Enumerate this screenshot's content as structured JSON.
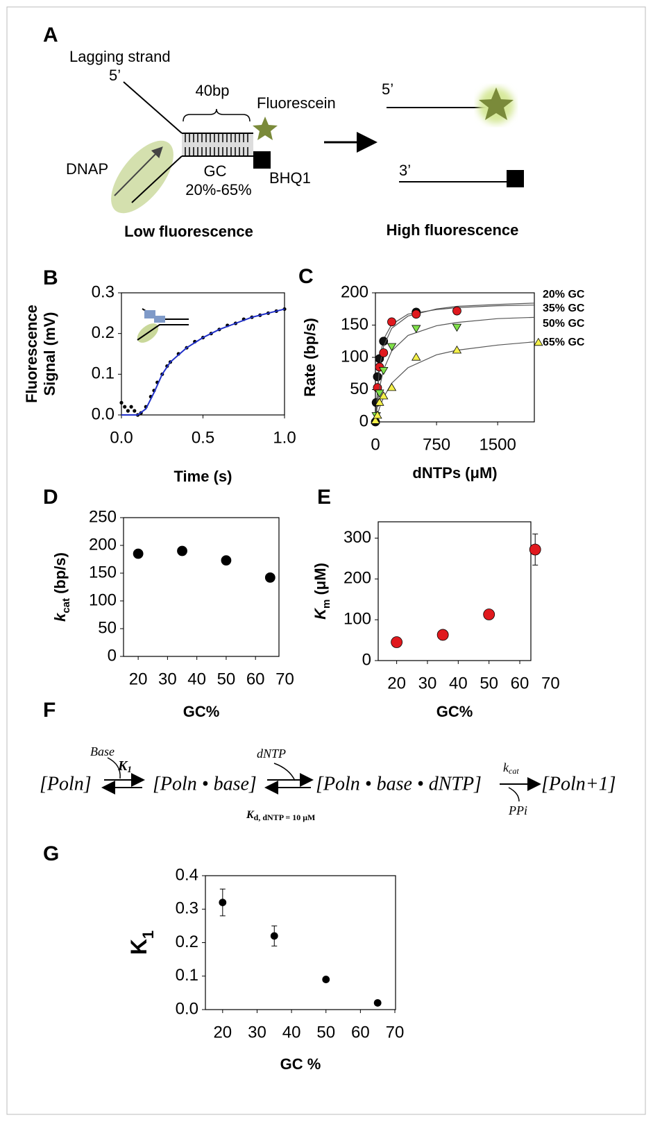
{
  "panel_a": {
    "label": "A",
    "lagging_strand": "Lagging strand",
    "five_prime_left": "5’",
    "bp": "40bp",
    "fluorescein": "Fluorescein",
    "dnap": "DNAP",
    "gc": "GC",
    "gc_range": "20%-65%",
    "bhq1": "BHQ1",
    "low": "Low fluorescence",
    "five_prime_right": "5’",
    "three_prime": "3’",
    "high": "High fluorescence"
  },
  "chart_data": [
    {
      "type": "line",
      "panel_label": "B",
      "x_label": "Time (s)",
      "y_label": [
        "Fluorescence",
        "Signal (mV)"
      ],
      "xlim": [
        0,
        1
      ],
      "ylim": [
        0,
        0.3
      ],
      "xticks": [
        {
          "value": 0,
          "label": "0.0"
        },
        0.5,
        {
          "value": 1,
          "label": "1.0"
        }
      ],
      "yticks": [
        {
          "value": 0,
          "label": "0.0"
        },
        0.1,
        0.2,
        0.3
      ],
      "series": [
        {
          "color": "#000000",
          "marker": "circle",
          "x": [
            0.0,
            0.02,
            0.04,
            0.06,
            0.08,
            0.1,
            0.12,
            0.15,
            0.18,
            0.2,
            0.22,
            0.25,
            0.28,
            0.3,
            0.35,
            0.4,
            0.45,
            0.5,
            0.55,
            0.6,
            0.65,
            0.7,
            0.75,
            0.8,
            0.85,
            0.9,
            0.95,
            1.0
          ],
          "values": [
            0.03,
            0.02,
            0.01,
            0.02,
            0.01,
            0.0,
            0.005,
            0.02,
            0.045,
            0.06,
            0.08,
            0.1,
            0.12,
            0.13,
            0.15,
            0.165,
            0.18,
            0.19,
            0.2,
            0.21,
            0.22,
            0.225,
            0.235,
            0.24,
            0.245,
            0.25,
            0.255,
            0.26
          ]
        },
        {
          "color": "#2030c8",
          "marker": "line",
          "x": [
            0,
            0.1,
            0.15,
            0.2,
            0.25,
            0.3,
            0.4,
            0.5,
            0.6,
            0.7,
            0.8,
            0.9,
            1.0
          ],
          "values": [
            0,
            0,
            0.015,
            0.055,
            0.1,
            0.13,
            0.165,
            0.19,
            0.21,
            0.225,
            0.24,
            0.25,
            0.26
          ]
        }
      ]
    },
    {
      "type": "scatter",
      "panel_label": "C",
      "x_label": "dNTPs (μM)",
      "y_label": [
        "Rate (bp/s)"
      ],
      "xlim": [
        0,
        1950
      ],
      "ylim": [
        0,
        200
      ],
      "xticks": [
        0,
        750,
        1500
      ],
      "yticks": [
        0,
        50,
        100,
        150,
        200
      ],
      "series": [
        {
          "name": "20% GC",
          "color": "#111111",
          "marker": "circle",
          "x": [
            0,
            10,
            25,
            50,
            100,
            500
          ],
          "values": [
            0,
            30,
            70,
            98,
            125,
            170
          ],
          "curve": {
            "x": [
              0,
              50,
              100,
              200,
              400,
              750,
              1000,
              1500,
              1950
            ],
            "values": [
              0,
              97,
              128,
              151,
              167,
              174,
              177,
              180,
              181
            ]
          }
        },
        {
          "name": "35% GC",
          "color": "#e0191e",
          "marker": "circle",
          "x": [
            25,
            50,
            100,
            200,
            500,
            1000
          ],
          "values": [
            53,
            85,
            107,
            155,
            167,
            172
          ],
          "curve": {
            "x": [
              0,
              50,
              100,
              200,
              400,
              750,
              1000,
              1500,
              1950
            ],
            "values": [
              0,
              85,
              117,
              145,
              164,
              175,
              179,
              182,
              184
            ]
          }
        },
        {
          "name": "50% GC",
          "color": "#80e04a",
          "marker": "triangle-down",
          "x": [
            10,
            50,
            100,
            200,
            500,
            1000
          ],
          "values": [
            10,
            45,
            80,
            117,
            145,
            147
          ],
          "curve": {
            "x": [
              0,
              50,
              100,
              200,
              400,
              750,
              1000,
              1500,
              1950
            ],
            "values": [
              0,
              53,
              81,
              110,
              134,
              149,
              154,
              160,
              162
            ]
          }
        },
        {
          "name": "65% GC",
          "color": "#f4f04a",
          "marker": "triangle-up",
          "x": [
            0,
            25,
            50,
            100,
            200,
            500,
            1000,
            2000
          ],
          "values": [
            2,
            10,
            30,
            40,
            53,
            100,
            111,
            123
          ],
          "curve": {
            "x": [
              0,
              50,
              100,
              200,
              400,
              750,
              1000,
              1500,
              1950
            ],
            "values": [
              0,
              22,
              38,
              60,
              84,
              104,
              111,
              119,
              124
            ]
          }
        }
      ]
    },
    {
      "type": "scatter",
      "panel_label": "D",
      "x_label": "GC%",
      "y_label": [
        "k",
        "cat",
        " (bp/s)"
      ],
      "xlim": [
        15,
        68
      ],
      "ylim": [
        0,
        250
      ],
      "xticks": [
        20,
        30,
        40,
        50,
        60,
        70
      ],
      "yticks": [
        0,
        50,
        100,
        150,
        200,
        250
      ],
      "series": [
        {
          "color": "#000000",
          "marker": "circle",
          "x": [
            20,
            35,
            50,
            65
          ],
          "values": [
            185,
            190,
            173,
            142
          ]
        }
      ]
    },
    {
      "type": "scatter",
      "panel_label": "E",
      "x_label": "GC%",
      "y_label": [
        "K",
        "m",
        " (μM)"
      ],
      "xlim": [
        14,
        63.6
      ],
      "ylim": [
        0,
        340
      ],
      "xticks": [
        20,
        30,
        40,
        50,
        60,
        70
      ],
      "yticks": [
        0,
        100,
        200,
        300
      ],
      "series": [
        {
          "color": "#e0191e",
          "marker": "circle",
          "x": [
            20,
            35,
            50,
            65
          ],
          "values": [
            45,
            63,
            113,
            272
          ],
          "errors": [
            null,
            null,
            null,
            38
          ]
        }
      ]
    },
    {
      "type": "scatter",
      "panel_label": "G",
      "x_label": "GC %",
      "y_label": [
        "K",
        "1"
      ],
      "xlim": [
        15,
        70.2
      ],
      "ylim": [
        0,
        0.4
      ],
      "xticks": [
        20,
        30,
        40,
        50,
        60,
        70
      ],
      "yticks": [
        {
          "value": 0,
          "label": "0.0"
        },
        0.1,
        0.2,
        0.3,
        0.4
      ],
      "series": [
        {
          "color": "#000000",
          "marker": "circle",
          "x": [
            20,
            35,
            50,
            65
          ],
          "values": [
            0.32,
            0.22,
            0.09,
            0.02
          ],
          "errors": [
            0.04,
            0.03,
            null,
            null
          ]
        }
      ]
    }
  ],
  "panel_f": {
    "label": "F",
    "poln": "[Poln]",
    "base": "Base",
    "k1": "K",
    "k1_sub": "1",
    "poln_base": "[Poln • base]",
    "dntp": "dNTP",
    "kd": "K",
    "kd_sub": "d, dNTP = 10 μM",
    "poln_base_dntp": "[Poln • base • dNTP]",
    "kcat": "k",
    "kcat_sub": "cat",
    "ppi": "PPi",
    "poln1": "[Poln+1]"
  }
}
